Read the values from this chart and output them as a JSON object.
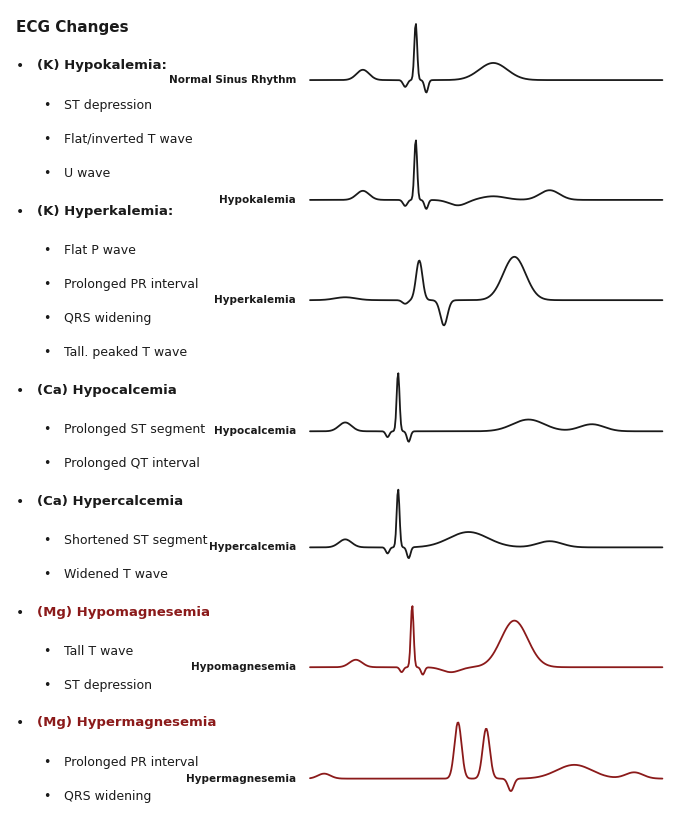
{
  "title": "ECG Changes",
  "background_color": "#ffffff",
  "text_color_black": "#1a1a1a",
  "text_color_red": "#8b1a1a",
  "sections": [
    {
      "header": "(K) Hypokalemia:",
      "header_color": "#1a1a1a",
      "items": [
        "ST depression",
        "Flat/inverted T wave",
        "U wave"
      ]
    },
    {
      "header": "(K) Hyperkalemia:",
      "header_color": "#1a1a1a",
      "items": [
        "Flat P wave",
        "Prolonged PR interval",
        "QRS widening",
        "Tall. peaked T wave"
      ]
    },
    {
      "header": "(Ca) Hypocalcemia",
      "header_color": "#1a1a1a",
      "items": [
        "Prolonged ST segment",
        "Prolonged QT interval"
      ]
    },
    {
      "header": "(Ca) Hypercalcemia",
      "header_color": "#1a1a1a",
      "items": [
        "Shortened ST segment",
        "Widened T wave"
      ]
    },
    {
      "header": "(Mg) Hypomagnesemia",
      "header_color": "#8b1a1a",
      "items": [
        "Tall T wave",
        "ST depression"
      ]
    },
    {
      "header": "(Mg) Hypermagnesemia",
      "header_color": "#8b1a1a",
      "items": [
        "Prolonged PR interval",
        "QRS widening"
      ]
    }
  ],
  "ecg_labels": [
    "Normal Sinus Rhythm",
    "Hypokalemia",
    "Hyperkalemia",
    "Hypocalcemia",
    "Hypercalcemia",
    "Hypomagnesemia",
    "Hypermagnesemia"
  ],
  "ecg_line_colors": [
    "#1a1a1a",
    "#1a1a1a",
    "#1a1a1a",
    "#1a1a1a",
    "#1a1a1a",
    "#8b1a1a",
    "#8b1a1a"
  ],
  "ecg_label_colors": [
    "#1a1a1a",
    "#1a1a1a",
    "#1a1a1a",
    "#1a1a1a",
    "#1a1a1a",
    "#1a1a1a",
    "#1a1a1a"
  ]
}
